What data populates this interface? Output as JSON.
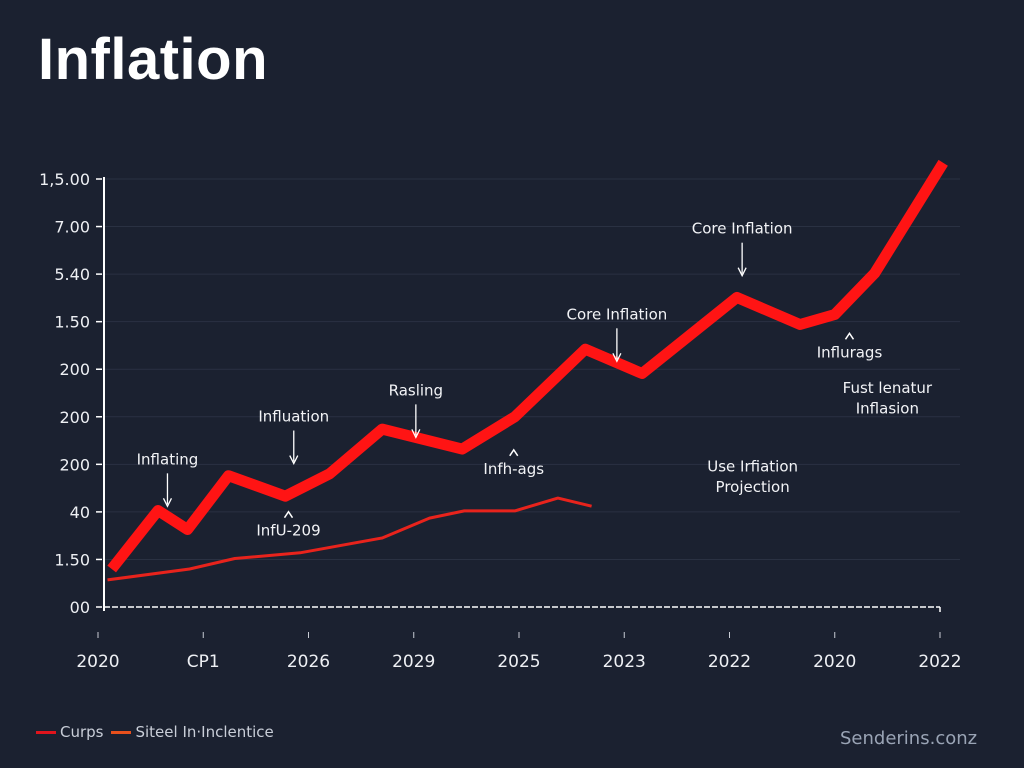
{
  "page": {
    "title": "Inflation",
    "watermark": "Senderins.conz"
  },
  "colors": {
    "background": "#1b2130",
    "primary_series": "#ff1414",
    "secondary_series": "#e8231c",
    "legend_series_1": "#e0141c",
    "legend_series_2": "#e8501c",
    "grid": "#2a3142",
    "axis": "#ffffff"
  },
  "chart_data": {
    "type": "line",
    "title": "Inflation",
    "xlabel": "",
    "ylabel": "",
    "grid": true,
    "legend_position": "bottom-left",
    "y_tick_labels": [
      "00",
      "1.50",
      "40",
      "200",
      "200",
      "200",
      "1.50",
      "5.40",
      "7.00",
      "1,5.00"
    ],
    "x_tick_labels": [
      "2020",
      "CP1",
      "2026",
      "2029",
      "2025",
      "2023",
      "2022",
      "2020",
      "2022"
    ],
    "axis_note": "Tick labels are non-monotonic; values below are expressed in tick-index units (x: 0 = first x tick, 8 = last; y: 0 = bottom tick, 9 = top tick).",
    "xlim": [
      0,
      8
    ],
    "ylim": [
      0,
      9
    ],
    "series": [
      {
        "name": "Curps",
        "style": "thick",
        "points": [
          [
            0.13,
            0.8
          ],
          [
            0.57,
            2.03
          ],
          [
            0.85,
            1.63
          ],
          [
            1.24,
            2.76
          ],
          [
            1.78,
            2.33
          ],
          [
            2.2,
            2.8
          ],
          [
            2.7,
            3.74
          ],
          [
            3.46,
            3.32
          ],
          [
            3.96,
            4.0
          ],
          [
            4.63,
            5.42
          ],
          [
            5.17,
            4.91
          ],
          [
            6.07,
            6.51
          ],
          [
            6.67,
            5.94
          ],
          [
            7.0,
            6.15
          ],
          [
            7.38,
            7.02
          ],
          [
            8.03,
            9.34
          ]
        ]
      },
      {
        "name": "Siteel In·Inclentice",
        "style": "thin",
        "points": [
          [
            0.09,
            0.57
          ],
          [
            0.87,
            0.8
          ],
          [
            1.3,
            1.02
          ],
          [
            1.92,
            1.14
          ],
          [
            2.7,
            1.45
          ],
          [
            3.15,
            1.87
          ],
          [
            3.48,
            2.02
          ],
          [
            3.96,
            2.02
          ],
          [
            4.37,
            2.29
          ],
          [
            4.69,
            2.12
          ]
        ]
      }
    ],
    "annotations": [
      {
        "text": "Inflating",
        "arrow": "down",
        "x": 0.66,
        "y": 3.0
      },
      {
        "text": "Influation",
        "arrow": "down",
        "x": 1.86,
        "y": 3.9
      },
      {
        "text": "InfU-209",
        "arrow": "up",
        "x": 1.81,
        "y": 1.5
      },
      {
        "text": "Rasling",
        "arrow": "down",
        "x": 3.02,
        "y": 4.45
      },
      {
        "text": "Infh-ags",
        "arrow": "up",
        "x": 3.95,
        "y": 2.8
      },
      {
        "text": "Core Inflation",
        "arrow": "down",
        "x": 4.93,
        "y": 6.05
      },
      {
        "text": "Core Inflation",
        "arrow": "down",
        "x": 6.12,
        "y": 7.85
      },
      {
        "text": "Influrags",
        "arrow": "up",
        "x": 7.14,
        "y": 5.25
      },
      {
        "text": "Use Irfiation",
        "arrow": "none",
        "x": 6.22,
        "y": 2.85
      },
      {
        "text": "Projection",
        "arrow": "none",
        "x": 6.22,
        "y": 2.42
      },
      {
        "text": "Fust lenatur",
        "arrow": "none",
        "x": 7.5,
        "y": 4.5
      },
      {
        "text": "Inflasion",
        "arrow": "none",
        "x": 7.5,
        "y": 4.07
      }
    ]
  },
  "legend": {
    "items": [
      {
        "label": "Curps",
        "color": "#e0141c"
      },
      {
        "label": "Siteel In·Inclentice",
        "color": "#e8501c"
      }
    ]
  }
}
